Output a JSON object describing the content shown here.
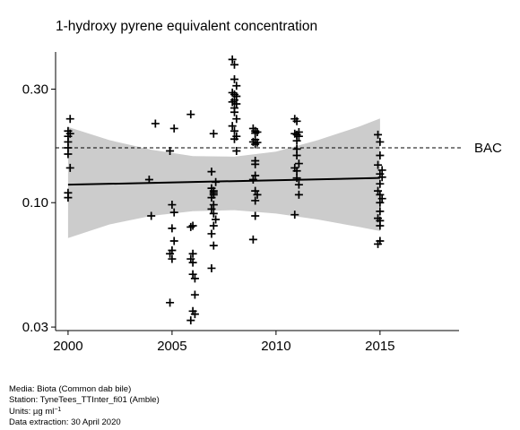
{
  "chart_data": {
    "type": "scatter",
    "title": "1-hydroxy pyrene equivalent concentration",
    "xlabel": "",
    "ylabel": "",
    "y_scale": "log",
    "xlim": [
      1999.4,
      2018.8
    ],
    "ylim": [
      0.029,
      0.43
    ],
    "x_ticks": [
      2000,
      2005,
      2010,
      2015
    ],
    "x_tick_labels": [
      "2000",
      "2005",
      "2010",
      "2015"
    ],
    "y_ticks": [
      0.03,
      0.1,
      0.3
    ],
    "y_tick_labels": [
      "0.03",
      "0.10",
      "0.30"
    ],
    "grid": false,
    "reference_line": {
      "label": "BAC",
      "value": 0.17
    },
    "trend": {
      "x": [
        2000,
        2015
      ],
      "y": [
        0.119,
        0.127
      ]
    },
    "confidence_band": {
      "x": [
        2000,
        2002,
        2004,
        2006,
        2008,
        2010,
        2012,
        2014,
        2015
      ],
      "lower": [
        0.071,
        0.081,
        0.088,
        0.092,
        0.093,
        0.09,
        0.085,
        0.079,
        0.076
      ],
      "upper": [
        0.208,
        0.183,
        0.167,
        0.157,
        0.156,
        0.164,
        0.183,
        0.209,
        0.226
      ]
    },
    "points": [
      {
        "x": 2000.0,
        "y": 0.2
      },
      {
        "x": 2000.0,
        "y": 0.19
      },
      {
        "x": 2000.0,
        "y": 0.18
      },
      {
        "x": 2000.0,
        "y": 0.17
      },
      {
        "x": 2000.0,
        "y": 0.16
      },
      {
        "x": 2000.1,
        "y": 0.14
      },
      {
        "x": 2000.0,
        "y": 0.11
      },
      {
        "x": 2000.0,
        "y": 0.105
      },
      {
        "x": 2000.1,
        "y": 0.225
      },
      {
        "x": 2000.1,
        "y": 0.195
      },
      {
        "x": 2003.9,
        "y": 0.125
      },
      {
        "x": 2004.0,
        "y": 0.088
      },
      {
        "x": 2004.2,
        "y": 0.215
      },
      {
        "x": 2004.9,
        "y": 0.165
      },
      {
        "x": 2005.1,
        "y": 0.205
      },
      {
        "x": 2005.0,
        "y": 0.098
      },
      {
        "x": 2005.1,
        "y": 0.091
      },
      {
        "x": 2005.0,
        "y": 0.078
      },
      {
        "x": 2005.1,
        "y": 0.069
      },
      {
        "x": 2005.0,
        "y": 0.063
      },
      {
        "x": 2004.9,
        "y": 0.061
      },
      {
        "x": 2005.0,
        "y": 0.058
      },
      {
        "x": 2004.9,
        "y": 0.038
      },
      {
        "x": 2005.9,
        "y": 0.235
      },
      {
        "x": 2006.0,
        "y": 0.08
      },
      {
        "x": 2005.9,
        "y": 0.079
      },
      {
        "x": 2006.0,
        "y": 0.061
      },
      {
        "x": 2005.9,
        "y": 0.058
      },
      {
        "x": 2006.0,
        "y": 0.056
      },
      {
        "x": 2006.0,
        "y": 0.05
      },
      {
        "x": 2006.1,
        "y": 0.048
      },
      {
        "x": 2006.1,
        "y": 0.041
      },
      {
        "x": 2006.0,
        "y": 0.035
      },
      {
        "x": 2006.1,
        "y": 0.034
      },
      {
        "x": 2005.9,
        "y": 0.032
      },
      {
        "x": 2006.9,
        "y": 0.135
      },
      {
        "x": 2007.0,
        "y": 0.195
      },
      {
        "x": 2006.9,
        "y": 0.115
      },
      {
        "x": 2007.0,
        "y": 0.112
      },
      {
        "x": 2007.0,
        "y": 0.108
      },
      {
        "x": 2006.9,
        "y": 0.105
      },
      {
        "x": 2007.0,
        "y": 0.098
      },
      {
        "x": 2006.9,
        "y": 0.094
      },
      {
        "x": 2007.0,
        "y": 0.09
      },
      {
        "x": 2007.1,
        "y": 0.085
      },
      {
        "x": 2007.0,
        "y": 0.08
      },
      {
        "x": 2006.9,
        "y": 0.074
      },
      {
        "x": 2007.0,
        "y": 0.066
      },
      {
        "x": 2006.9,
        "y": 0.053
      },
      {
        "x": 2007.0,
        "y": 0.11
      },
      {
        "x": 2007.1,
        "y": 0.122
      },
      {
        "x": 2007.9,
        "y": 0.4
      },
      {
        "x": 2008.0,
        "y": 0.38
      },
      {
        "x": 2008.0,
        "y": 0.33
      },
      {
        "x": 2008.1,
        "y": 0.31
      },
      {
        "x": 2007.9,
        "y": 0.29
      },
      {
        "x": 2008.0,
        "y": 0.285
      },
      {
        "x": 2008.1,
        "y": 0.28
      },
      {
        "x": 2008.0,
        "y": 0.27
      },
      {
        "x": 2007.9,
        "y": 0.265
      },
      {
        "x": 2008.1,
        "y": 0.26
      },
      {
        "x": 2008.0,
        "y": 0.25
      },
      {
        "x": 2008.0,
        "y": 0.24
      },
      {
        "x": 2008.1,
        "y": 0.225
      },
      {
        "x": 2007.9,
        "y": 0.21
      },
      {
        "x": 2008.0,
        "y": 0.2
      },
      {
        "x": 2008.1,
        "y": 0.19
      },
      {
        "x": 2008.0,
        "y": 0.185
      },
      {
        "x": 2008.1,
        "y": 0.165
      },
      {
        "x": 2008.9,
        "y": 0.205
      },
      {
        "x": 2009.0,
        "y": 0.2
      },
      {
        "x": 2009.1,
        "y": 0.198
      },
      {
        "x": 2009.0,
        "y": 0.196
      },
      {
        "x": 2009.0,
        "y": 0.184
      },
      {
        "x": 2008.9,
        "y": 0.18
      },
      {
        "x": 2009.1,
        "y": 0.179
      },
      {
        "x": 2009.0,
        "y": 0.176
      },
      {
        "x": 2009.0,
        "y": 0.15
      },
      {
        "x": 2009.0,
        "y": 0.145
      },
      {
        "x": 2009.0,
        "y": 0.13
      },
      {
        "x": 2008.9,
        "y": 0.125
      },
      {
        "x": 2009.0,
        "y": 0.112
      },
      {
        "x": 2009.1,
        "y": 0.108
      },
      {
        "x": 2009.0,
        "y": 0.102
      },
      {
        "x": 2009.0,
        "y": 0.088
      },
      {
        "x": 2008.9,
        "y": 0.07
      },
      {
        "x": 2010.9,
        "y": 0.225
      },
      {
        "x": 2011.0,
        "y": 0.22
      },
      {
        "x": 2011.1,
        "y": 0.198
      },
      {
        "x": 2010.9,
        "y": 0.195
      },
      {
        "x": 2011.0,
        "y": 0.193
      },
      {
        "x": 2011.1,
        "y": 0.19
      },
      {
        "x": 2011.0,
        "y": 0.182
      },
      {
        "x": 2011.0,
        "y": 0.168
      },
      {
        "x": 2011.0,
        "y": 0.158
      },
      {
        "x": 2011.1,
        "y": 0.146
      },
      {
        "x": 2010.9,
        "y": 0.14
      },
      {
        "x": 2011.0,
        "y": 0.136
      },
      {
        "x": 2011.0,
        "y": 0.127
      },
      {
        "x": 2011.1,
        "y": 0.119
      },
      {
        "x": 2011.1,
        "y": 0.108
      },
      {
        "x": 2010.9,
        "y": 0.089
      },
      {
        "x": 2014.9,
        "y": 0.193
      },
      {
        "x": 2015.0,
        "y": 0.18
      },
      {
        "x": 2015.0,
        "y": 0.158
      },
      {
        "x": 2014.9,
        "y": 0.144
      },
      {
        "x": 2015.1,
        "y": 0.137
      },
      {
        "x": 2015.0,
        "y": 0.132
      },
      {
        "x": 2015.1,
        "y": 0.128
      },
      {
        "x": 2015.0,
        "y": 0.12
      },
      {
        "x": 2014.9,
        "y": 0.112
      },
      {
        "x": 2015.0,
        "y": 0.108
      },
      {
        "x": 2015.1,
        "y": 0.104
      },
      {
        "x": 2015.0,
        "y": 0.1
      },
      {
        "x": 2015.0,
        "y": 0.092
      },
      {
        "x": 2014.9,
        "y": 0.086
      },
      {
        "x": 2015.0,
        "y": 0.084
      },
      {
        "x": 2015.0,
        "y": 0.08
      },
      {
        "x": 2015.0,
        "y": 0.069
      },
      {
        "x": 2014.9,
        "y": 0.067
      }
    ]
  },
  "footer": {
    "media": "Media: Biota (Common dab bile)",
    "station": "Station: TyneTees_TTInter_fi01 (Amble)",
    "units_prefix": "Units:  µg ml",
    "units_exponent": "−1",
    "extraction": "Data extraction: 30 April 2020"
  },
  "colors": {
    "band": "#cccccc",
    "trend": "#000000",
    "points": "#000000",
    "reference": "#000000"
  }
}
